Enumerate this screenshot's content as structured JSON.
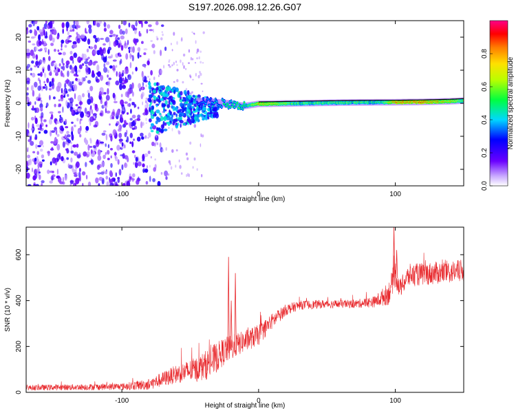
{
  "title": "S197.2026.098.12.26.G07",
  "colors": {
    "snr_line": "#e8282c",
    "ridge_line": "#000000",
    "background": "#ffffff"
  },
  "chart_data": [
    {
      "type": "heatmap",
      "title": "S197.2026.098.12.26.G07",
      "xlabel": "Height of straight line (km)",
      "ylabel": "Frequency (Hz)",
      "xlim": [
        -170,
        150
      ],
      "ylim": [
        -25,
        25
      ],
      "x_ticks": [
        -100,
        0,
        100
      ],
      "y_ticks": [
        -20,
        -10,
        0,
        10,
        20
      ],
      "colorbar": {
        "label": "Normalized spectral amplitude",
        "range": [
          0.0,
          1.0
        ],
        "ticks": [
          "0.0",
          "0.2",
          "0.4",
          "0.6",
          "0.8"
        ],
        "tick_values": [
          0.0,
          0.2,
          0.4,
          0.6,
          0.8
        ],
        "colormap": "rainbow (white-violet-blue-cyan-green-yellow-red-magenta)"
      },
      "ridge": {
        "x": [
          -40,
          -20,
          -10,
          0,
          30,
          60,
          90,
          100,
          120,
          140,
          150
        ],
        "freq": [
          0.5,
          -0.3,
          -0.8,
          -0.2,
          0.0,
          0.2,
          0.3,
          0.3,
          0.4,
          0.6,
          0.8
        ],
        "amplitude": [
          0.35,
          0.5,
          0.5,
          0.8,
          0.55,
          0.55,
          0.55,
          0.85,
          0.85,
          0.75,
          0.6
        ]
      },
      "noise_region": {
        "x": [
          -170,
          -80
        ],
        "freq_spread": 25,
        "amplitude": [
          0.05,
          0.25
        ]
      },
      "transition_region": {
        "x": [
          -80,
          -40
        ],
        "freq_spread": 8,
        "amplitude": [
          0.2,
          0.45
        ]
      }
    },
    {
      "type": "line",
      "xlabel": "Height of straight line (km)",
      "ylabel": "SNR (10 * v/v)",
      "xlim": [
        -170,
        150
      ],
      "ylim": [
        0,
        720
      ],
      "x_ticks": [
        -100,
        0,
        100
      ],
      "y_ticks": [
        0,
        200,
        400,
        600
      ],
      "series": [
        {
          "name": "SNR",
          "x": [
            -170,
            -100,
            -80,
            -60,
            -45,
            -35,
            -25,
            -15,
            0,
            10,
            20,
            30,
            50,
            70,
            85,
            95,
            100,
            103,
            110,
            130,
            150
          ],
          "y": [
            20,
            25,
            35,
            80,
            100,
            130,
            180,
            210,
            250,
            310,
            360,
            380,
            385,
            385,
            395,
            430,
            520,
            450,
            510,
            520,
            530
          ],
          "noise": [
            12,
            15,
            25,
            40,
            55,
            70,
            60,
            50,
            45,
            35,
            25,
            20,
            18,
            18,
            25,
            50,
            60,
            40,
            50,
            50,
            50
          ]
        }
      ],
      "spikes": [
        {
          "x": -22,
          "y": 590
        },
        {
          "x": -20,
          "y": 400
        },
        {
          "x": -17,
          "y": 520
        },
        {
          "x": 99,
          "y": 720
        },
        {
          "x": 101,
          "y": 620
        }
      ]
    }
  ]
}
